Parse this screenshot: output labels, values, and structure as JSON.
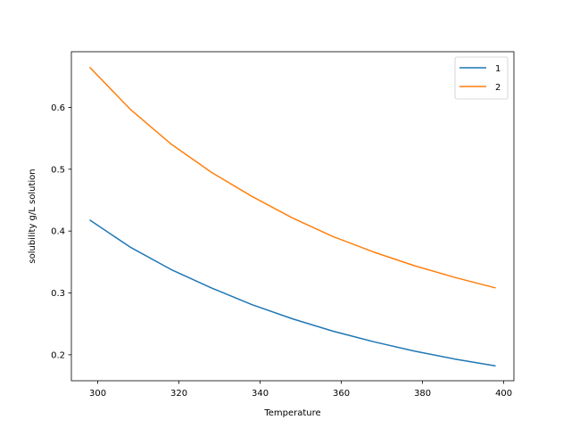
{
  "chart_data": {
    "type": "line",
    "title": "",
    "xlabel": "Temperature",
    "ylabel": "solubility g/L solution",
    "xlim": [
      293.5,
      402.5
    ],
    "ylim": [
      0.158,
      0.69
    ],
    "xticks": [
      300,
      320,
      340,
      360,
      380,
      400
    ],
    "yticks": [
      0.2,
      0.3,
      0.4,
      0.5,
      0.6
    ],
    "ytick_labels": [
      "0.2",
      "0.3",
      "0.4",
      "0.5",
      "0.6"
    ],
    "grid": false,
    "legend_position": "top-right",
    "x": [
      298,
      308,
      318,
      328,
      338,
      348,
      358,
      368,
      378,
      388,
      398
    ],
    "series": [
      {
        "name": "1",
        "color": "#1f77b4",
        "values": [
          0.418,
          0.374,
          0.338,
          0.308,
          0.281,
          0.258,
          0.238,
          0.221,
          0.206,
          0.193,
          0.182
        ]
      },
      {
        "name": "2",
        "color": "#ff7f0e",
        "values": [
          0.665,
          0.597,
          0.541,
          0.495,
          0.456,
          0.421,
          0.391,
          0.366,
          0.344,
          0.325,
          0.308
        ]
      }
    ]
  }
}
